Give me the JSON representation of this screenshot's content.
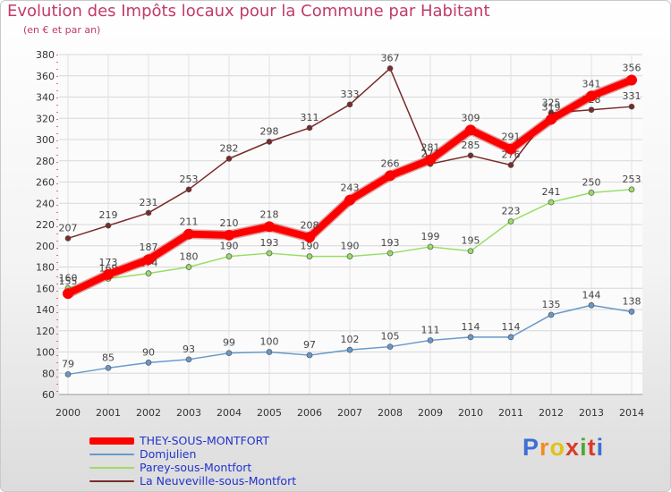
{
  "title": "Evolution des Impôts locaux pour la Commune par Habitant",
  "subtitle": "(en € et par an)",
  "logo": {
    "letters": [
      "P",
      "r",
      "o",
      "x",
      "i",
      "t",
      "i"
    ]
  },
  "chart_data": {
    "type": "line",
    "title": "Evolution des Impôts locaux pour la Commune par Habitant",
    "ylabel": "(en € et par an)",
    "xlabel": "",
    "x": [
      "2000",
      "2001",
      "2002",
      "2003",
      "2004",
      "2005",
      "2006",
      "2007",
      "2008",
      "2009",
      "2010",
      "2011",
      "2012",
      "2013",
      "2014"
    ],
    "ylim": [
      60,
      380
    ],
    "yticks": [
      60,
      80,
      100,
      120,
      140,
      160,
      180,
      200,
      220,
      240,
      260,
      280,
      300,
      320,
      340,
      360,
      380
    ],
    "grid": true,
    "legend_position": "bottom-left",
    "series": [
      {
        "name": "THEY-SOUS-MONTFORT",
        "color": "#ff0000",
        "values": [
          155,
          173,
          187,
          211,
          210,
          218,
          208,
          243,
          266,
          281,
          309,
          291,
          319,
          341,
          356
        ],
        "labels": [
          "155",
          "173",
          "187",
          "211",
          "210",
          "218",
          "208",
          "243",
          "266",
          "281",
          "309",
          "291",
          "319",
          "341",
          "356"
        ]
      },
      {
        "name": "Domjulien",
        "color": "#6699cc",
        "values": [
          79,
          85,
          90,
          93,
          99,
          100,
          97,
          102,
          105,
          111,
          114,
          114,
          135,
          144,
          138
        ],
        "labels": [
          "79",
          "85",
          "90",
          "93",
          "99",
          "100",
          "97",
          "102",
          "105",
          "111",
          "114",
          "114",
          "135",
          "144",
          "138"
        ]
      },
      {
        "name": "Parey-sous-Montfort",
        "color": "#99dd66",
        "values": [
          160,
          169,
          174,
          180,
          190,
          193,
          190,
          190,
          193,
          199,
          195,
          223,
          241,
          250,
          253
        ],
        "labels": [
          "160",
          "169",
          "174",
          "180",
          "190",
          "193",
          "190",
          "190",
          "193",
          "199",
          "195",
          "223",
          "241",
          "250",
          "253"
        ]
      },
      {
        "name": "La Neuveville-sous-Montfort",
        "color": "#7a2a2a",
        "values": [
          207,
          219,
          231,
          253,
          282,
          298,
          311,
          333,
          367,
          277,
          285,
          276,
          325,
          328,
          331
        ],
        "labels": [
          "207",
          "219",
          "231",
          "253",
          "282",
          "298",
          "311",
          "333",
          "367",
          "277",
          "285",
          "276",
          "325",
          "328",
          "331"
        ]
      }
    ]
  }
}
